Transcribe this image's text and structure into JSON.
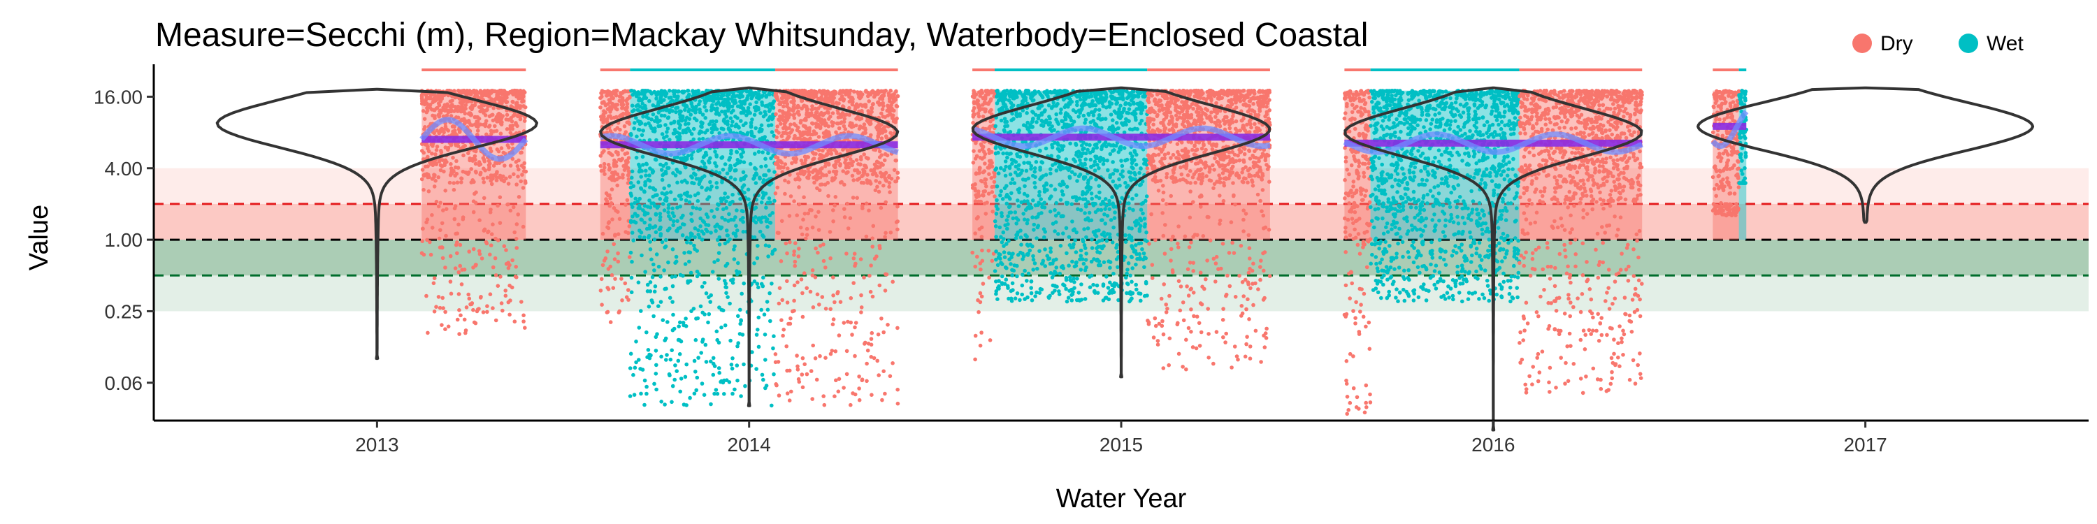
{
  "chart_data": {
    "type": "scatter",
    "title": "Measure=Secchi (m), Region=Mackay Whitsunday, Waterbody=Enclosed Coastal",
    "xlabel": "Water Year",
    "ylabel": "Value",
    "y_scale": "log2",
    "ylim": [
      0.03,
      30
    ],
    "xlim": [
      2012.4,
      2017.6
    ],
    "x_ticks": [
      2013,
      2014,
      2015,
      2016,
      2017
    ],
    "x_tick_labels": [
      "2013",
      "2014",
      "2015",
      "2016",
      "2017"
    ],
    "y_ticks": [
      0.0625,
      0.25,
      1,
      4,
      16
    ],
    "y_tick_labels": [
      "0.06",
      "0.25",
      "1.00",
      "4.00",
      "16.00"
    ],
    "grid": false,
    "legend": {
      "position": "top-right",
      "entries": [
        {
          "label": "Dry",
          "color": "#F8766D"
        },
        {
          "label": "Wet",
          "color": "#00BFC4"
        }
      ]
    },
    "reference_lines": [
      {
        "y": 2.0,
        "color": "#E41A1C",
        "style": "dashed"
      },
      {
        "y": 1.0,
        "color": "#000000",
        "style": "dashed"
      },
      {
        "y": 0.5,
        "color": "#006D2C",
        "style": "dashed"
      }
    ],
    "bands": [
      {
        "y0": 1.0,
        "y1": 4.0,
        "color": "#F8766D",
        "opacity": 0.14
      },
      {
        "y0": 1.0,
        "y1": 2.0,
        "color": "#F8766D",
        "opacity": 0.3
      },
      {
        "y0": 0.5,
        "y1": 1.0,
        "color": "#1B7837",
        "opacity": 0.28
      },
      {
        "y0": 0.25,
        "y1": 1.0,
        "color": "#1B7837",
        "opacity": 0.12
      }
    ],
    "season_periods": [
      {
        "season": "Dry",
        "x0": 2013.12,
        "x1": 2013.4
      },
      {
        "season": "Dry",
        "x0": 2013.6,
        "x1": 2013.68
      },
      {
        "season": "Wet",
        "x0": 2013.68,
        "x1": 2014.07
      },
      {
        "season": "Dry",
        "x0": 2014.07,
        "x1": 2014.4
      },
      {
        "season": "Dry",
        "x0": 2014.6,
        "x1": 2014.66
      },
      {
        "season": "Wet",
        "x0": 2014.66,
        "x1": 2015.07
      },
      {
        "season": "Dry",
        "x0": 2015.07,
        "x1": 2015.4
      },
      {
        "season": "Dry",
        "x0": 2015.6,
        "x1": 2015.67
      },
      {
        "season": "Wet",
        "x0": 2015.67,
        "x1": 2016.07
      },
      {
        "season": "Dry",
        "x0": 2016.07,
        "x1": 2016.4
      },
      {
        "season": "Dry",
        "x0": 2016.59,
        "x1": 2016.66
      },
      {
        "season": "Wet",
        "x0": 2016.66,
        "x1": 2016.68
      }
    ],
    "annual_means": [
      {
        "x0": 2013.12,
        "x1": 2013.4,
        "y": 7.0
      },
      {
        "x0": 2013.6,
        "x1": 2014.4,
        "y": 6.3
      },
      {
        "x0": 2014.6,
        "x1": 2015.4,
        "y": 7.3
      },
      {
        "x0": 2015.6,
        "x1": 2016.4,
        "y": 6.5
      },
      {
        "x0": 2016.59,
        "x1": 2016.68,
        "y": 9.0
      }
    ],
    "violins": [
      {
        "x": 2013,
        "half_width": 0.43,
        "min": 0.1,
        "max": 18.5,
        "mode": 9.5
      },
      {
        "x": 2014,
        "half_width": 0.4,
        "min": 0.04,
        "max": 19.0,
        "mode": 8.0
      },
      {
        "x": 2015,
        "half_width": 0.4,
        "min": 0.07,
        "max": 19.0,
        "mode": 8.5
      },
      {
        "x": 2016,
        "half_width": 0.4,
        "min": 0.025,
        "max": 19.0,
        "mode": 8.0
      },
      {
        "x": 2017,
        "half_width": 0.45,
        "min": 1.4,
        "max": 19.0,
        "mode": 9.0
      }
    ],
    "scatter_summary": [
      {
        "season": "Dry",
        "x0": 2013.12,
        "x1": 2013.4,
        "typical_low": 3.0,
        "typical_high": 18.0,
        "min": 0.15
      },
      {
        "season": "Dry",
        "x0": 2013.6,
        "x1": 2013.68,
        "typical_low": 3.0,
        "typical_high": 18.0,
        "min": 0.2
      },
      {
        "season": "Wet",
        "x0": 2013.68,
        "x1": 2014.07,
        "typical_low": 1.0,
        "typical_high": 18.0,
        "min": 0.04
      },
      {
        "season": "Dry",
        "x0": 2014.07,
        "x1": 2014.4,
        "typical_low": 3.0,
        "typical_high": 18.0,
        "min": 0.04
      },
      {
        "season": "Dry",
        "x0": 2014.6,
        "x1": 2014.66,
        "typical_low": 2.0,
        "typical_high": 18.0,
        "min": 0.07
      },
      {
        "season": "Wet",
        "x0": 2014.66,
        "x1": 2015.07,
        "typical_low": 1.0,
        "typical_high": 18.0,
        "min": 0.3
      },
      {
        "season": "Dry",
        "x0": 2015.07,
        "x1": 2015.4,
        "typical_low": 3.0,
        "typical_high": 18.0,
        "min": 0.08
      },
      {
        "season": "Dry",
        "x0": 2015.6,
        "x1": 2015.67,
        "typical_low": 0.8,
        "typical_high": 18.0,
        "min": 0.03
      },
      {
        "season": "Wet",
        "x0": 2015.67,
        "x1": 2016.07,
        "typical_low": 1.0,
        "typical_high": 18.0,
        "min": 0.3
      },
      {
        "season": "Dry",
        "x0": 2016.07,
        "x1": 2016.4,
        "typical_low": 2.0,
        "typical_high": 18.0,
        "min": 0.05
      },
      {
        "season": "Dry",
        "x0": 2016.59,
        "x1": 2016.66,
        "typical_low": 2.0,
        "typical_high": 18.0,
        "min": 1.6
      },
      {
        "season": "Wet",
        "x0": 2016.66,
        "x1": 2016.68,
        "typical_low": 3.0,
        "typical_high": 18.0,
        "min": 3.0
      }
    ]
  }
}
